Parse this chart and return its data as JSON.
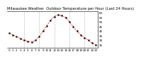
{
  "title": "Milwaukee Weather  Outdoor Temperature per Hour (Last 24 Hours)",
  "hours": [
    0,
    1,
    2,
    3,
    4,
    5,
    6,
    7,
    8,
    9,
    10,
    11,
    12,
    13,
    14,
    15,
    16,
    17,
    18,
    19,
    20,
    21,
    22,
    23
  ],
  "temps": [
    38,
    36,
    34,
    32,
    30,
    29,
    28,
    30,
    34,
    40,
    46,
    52,
    56,
    58,
    57,
    55,
    50,
    45,
    40,
    36,
    33,
    30,
    27,
    25
  ],
  "line_color": "#ff0000",
  "marker_color": "#000000",
  "marker": "s",
  "background_color": "#ffffff",
  "grid_color": "#999999",
  "title_fontsize": 3.8,
  "tick_fontsize": 3.0,
  "ylabel_fontsize": 3.0,
  "ylim": [
    22,
    62
  ],
  "yticks": [
    25,
    30,
    35,
    40,
    45,
    50,
    55,
    60
  ],
  "ytick_labels": [
    "25",
    "30",
    "35",
    "40",
    "45",
    "50",
    "55",
    "60"
  ],
  "xtick_hours": [
    0,
    1,
    2,
    3,
    4,
    5,
    6,
    7,
    8,
    9,
    10,
    11,
    12,
    13,
    14,
    15,
    16,
    17,
    18,
    19,
    20,
    21,
    22,
    23
  ],
  "xtick_labels": [
    "0",
    "1",
    "2",
    "3",
    "4",
    "5",
    "6",
    "7",
    "8",
    "9",
    "10",
    "11",
    "12",
    "13",
    "14",
    "15",
    "16",
    "17",
    "18",
    "19",
    "20",
    "21",
    "22",
    "23"
  ],
  "vgrid_positions": [
    4,
    8,
    12,
    16,
    20
  ]
}
